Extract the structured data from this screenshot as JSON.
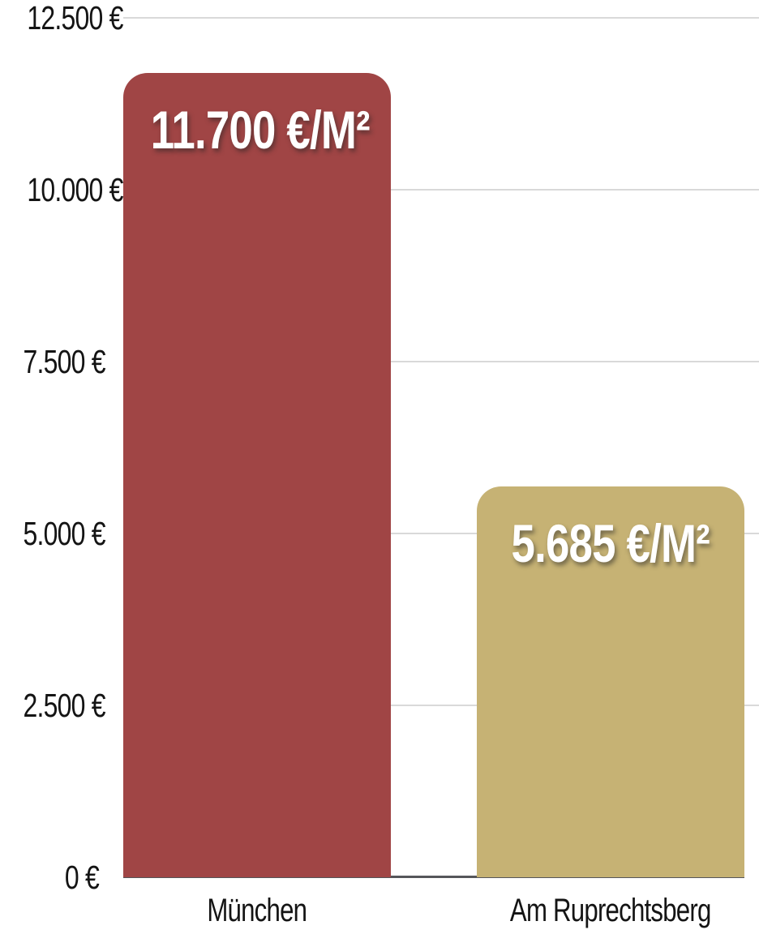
{
  "chart_data": {
    "type": "bar",
    "categories": [
      "München",
      "Am Ruprechtsberg"
    ],
    "values": [
      11700,
      5685
    ],
    "bar_labels": [
      "11.700 €/M²",
      "5.685 €/M²"
    ],
    "bar_colors": [
      "#A04545",
      "#C6B274"
    ],
    "ticks": [
      {
        "value": 0,
        "label": "0 €"
      },
      {
        "value": 2500,
        "label": "2.500 €"
      },
      {
        "value": 5000,
        "label": "5.000 €"
      },
      {
        "value": 7500,
        "label": "7.500 €"
      },
      {
        "value": 10000,
        "label": "10.000 €"
      },
      {
        "value": 12500,
        "label": "12.500 €"
      }
    ],
    "ylim": [
      0,
      12500
    ],
    "xlabel": "",
    "ylabel": "",
    "title": "",
    "grid": true,
    "legend": "none",
    "background_color": "#FFFFFF",
    "gridline_color": "#D9D9D9",
    "baseline_color": "#55565A",
    "text_color": "#141414",
    "value_label_color": "#FFFFFF"
  }
}
